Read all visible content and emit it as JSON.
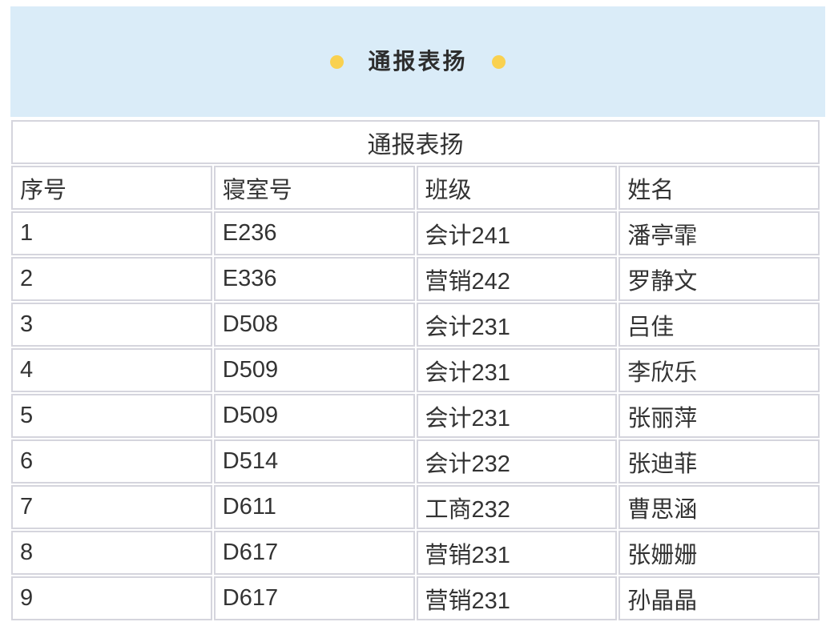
{
  "colors": {
    "page_bg": "#ffffff",
    "banner_bg": "#daecf8",
    "banner_text": "#2d2d2d",
    "dot_yellow": "#f9d150",
    "table_border": "#d5d5dd",
    "cell_bg": "#ffffff",
    "cell_text": "#333333"
  },
  "banner": {
    "title": "通报表扬",
    "left_icon": "yellow-dot",
    "right_icon": "yellow-dot"
  },
  "table": {
    "title": "通报表扬",
    "columns": [
      {
        "key": "index",
        "label": "序号"
      },
      {
        "key": "dorm",
        "label": "寝室号"
      },
      {
        "key": "class",
        "label": "班级"
      },
      {
        "key": "name",
        "label": "姓名"
      }
    ],
    "rows": [
      [
        "1",
        "E236",
        "会计241",
        "潘亭霏"
      ],
      [
        "2",
        "E336",
        "营销242",
        "罗静文"
      ],
      [
        "3",
        "D508",
        "会计231",
        "吕佳"
      ],
      [
        "4",
        "D509",
        "会计231",
        "李欣乐"
      ],
      [
        "5",
        "D509",
        "会计231",
        "张丽萍"
      ],
      [
        "6",
        "D514",
        "会计232",
        "张迪菲"
      ],
      [
        "7",
        "D611",
        "工商232",
        "曹思涵"
      ],
      [
        "8",
        "D617",
        "营销231",
        "张姗姗"
      ],
      [
        "9",
        "D617",
        "营销231",
        "孙晶晶"
      ]
    ]
  }
}
